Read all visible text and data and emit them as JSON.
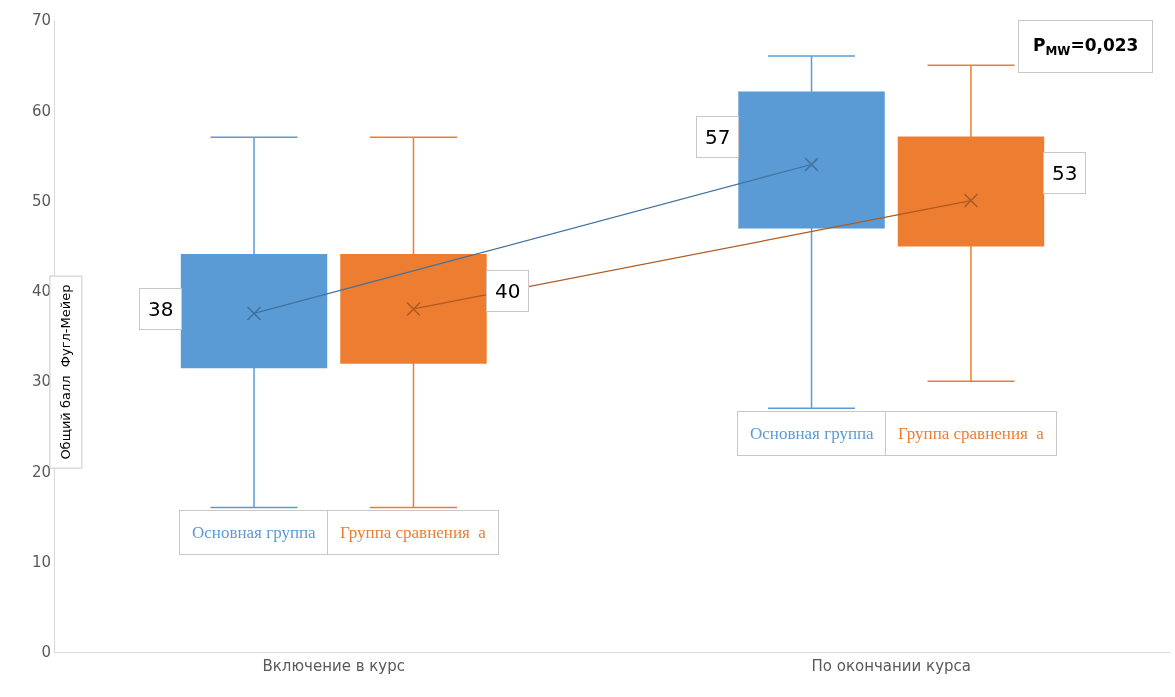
{
  "chart_data": {
    "type": "box",
    "ylabel": "Общий балл  Фугл-Мейер",
    "categories": [
      "Включение в курс",
      "По окончании курса"
    ],
    "series": [
      {
        "name": "Основная группа",
        "color": "#5b9bd5",
        "value_labels": [
          "38",
          "57"
        ],
        "boxes": [
          {
            "low": 16,
            "q1": 31.5,
            "median": 38,
            "q3": 44,
            "high": 57
          },
          {
            "low": 27,
            "q1": 47,
            "median": 57,
            "q3": 62,
            "high": 66
          }
        ]
      },
      {
        "name": "Группа сравнения  а",
        "color": "#ed7d31",
        "value_labels": [
          "40",
          "53"
        ],
        "boxes": [
          {
            "low": 16,
            "q1": 32,
            "median": 40,
            "q3": 44,
            "high": 57
          },
          {
            "low": 30,
            "q1": 45,
            "median": 53,
            "q3": 57,
            "high": 65
          }
        ]
      },
      {
        "type": "line",
        "color": "#41719c",
        "values": [
          37.5,
          54
        ]
      },
      {
        "type": "line",
        "color": "#ae5a21",
        "values": [
          38,
          50
        ]
      }
    ],
    "annotations": [
      "P$_{MW}$=0,023"
    ],
    "ylim": [
      0,
      70
    ],
    "yticks": [
      0,
      10,
      20,
      30,
      40,
      50,
      60,
      70
    ],
    "legend": false,
    "marker": "cross"
  }
}
